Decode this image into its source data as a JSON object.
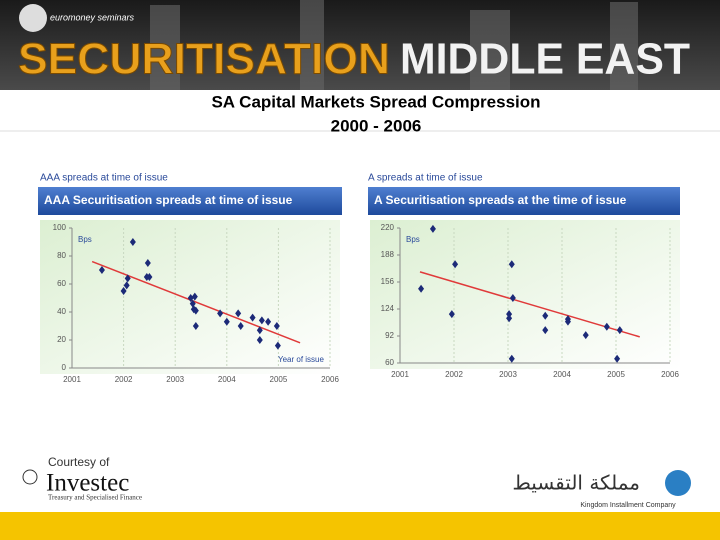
{
  "header": {
    "logo_text": "euromoney seminars",
    "banner_left": "SECURITISATION",
    "banner_right": "MIDDLE EAST"
  },
  "title": [
    "SA Capital Markets Spread Compression",
    "2000 - 2006"
  ],
  "chart_data": [
    {
      "type": "scatter",
      "caption": "AAA spreads at time of issue",
      "title": "AAA Securitisation spreads at time of issue",
      "y_label": "Bps",
      "x_label": "Year of issue",
      "color": "#1c2a78",
      "grid": true,
      "xlim": [
        2001,
        2006
      ],
      "ylim": [
        0,
        100
      ],
      "xticks": [
        2001,
        2002,
        2003,
        2004,
        2005,
        2006
      ],
      "yticks": [
        0,
        20,
        40,
        60,
        80,
        100
      ],
      "x": [
        2001.58,
        2002.18,
        2002.0,
        2002.06,
        2002.08,
        2002.47,
        2002.45,
        2002.5,
        2003.3,
        2003.34,
        2003.38,
        2003.4,
        2003.4,
        2003.36,
        2003.87,
        2004.0,
        2004.22,
        2004.27,
        2004.5,
        2004.64,
        2004.64,
        2004.8,
        2004.97,
        2004.99,
        2004.68
      ],
      "values": [
        70,
        90,
        55,
        59,
        64,
        75,
        65,
        65,
        50,
        46,
        51,
        41,
        30,
        42,
        39,
        33,
        39,
        30,
        36,
        27,
        20,
        33,
        30,
        16,
        34
      ],
      "trendline": {
        "x": [
          2001.39,
          2005.42
        ],
        "values": [
          76,
          18
        ],
        "color": "#e03a3a"
      }
    },
    {
      "type": "scatter",
      "caption": "A spreads at time of issue",
      "title": "A Securitisation spreads at the time of issue",
      "y_label": "Bps",
      "color": "#1c2a78",
      "grid": true,
      "xlim": [
        2001,
        2006
      ],
      "ylim": [
        60,
        220
      ],
      "xticks": [
        2001,
        2002,
        2003,
        2004,
        2005,
        2006
      ],
      "yticks": [
        60,
        92,
        124,
        156,
        188,
        220
      ],
      "x": [
        2001.39,
        2001.61,
        2001.96,
        2002.02,
        2003.02,
        2003.02,
        2003.07,
        2003.09,
        2003.07,
        2003.69,
        2003.69,
        2004.11,
        2004.11,
        2004.44,
        2004.83,
        2005.07,
        2005.02
      ],
      "values": [
        148,
        219,
        118,
        177,
        113,
        118,
        177,
        137,
        65,
        116,
        99,
        112,
        109,
        93,
        103,
        99,
        65
      ],
      "trendline": {
        "x": [
          2001.37,
          2005.44
        ],
        "values": [
          168,
          91
        ],
        "color": "#e03a3a"
      }
    }
  ],
  "footer": {
    "courtesy": "Courtesy of",
    "investec": "Investec",
    "investec_tagline": "Treasury and Specialised Finance",
    "kic_arabic": "مملكة التقسيط",
    "kic": "Kingdom Installment Company"
  }
}
